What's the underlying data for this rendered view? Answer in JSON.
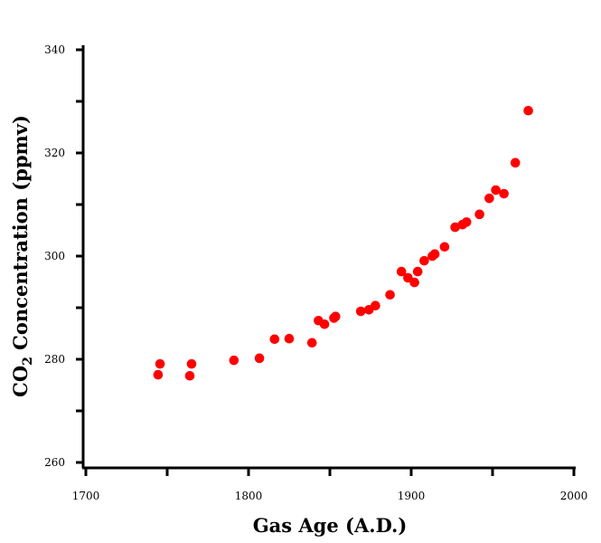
{
  "chart_data": {
    "type": "scatter",
    "title": "",
    "xlabel": "Gas Age (A.D.)",
    "ylabel_main": "CO",
    "ylabel_sub": "2",
    "ylabel_rest": " Concentration (ppmv)",
    "xlim": [
      1700,
      2000
    ],
    "ylim": [
      260,
      340
    ],
    "xticks": [
      "1700",
      "1800",
      "1900",
      "2000"
    ],
    "yticks": [
      "260",
      "280",
      "300",
      "320",
      "340"
    ],
    "grid": false,
    "marker_color": "#ff0000",
    "points": [
      [
        1744.4,
        277.0
      ],
      [
        1745.6,
        279.1
      ],
      [
        1763.9,
        276.8
      ],
      [
        1765.0,
        279.1
      ],
      [
        1791.0,
        279.8
      ],
      [
        1806.7,
        280.2
      ],
      [
        1816.0,
        283.9
      ],
      [
        1825.0,
        284.0
      ],
      [
        1839.0,
        283.2
      ],
      [
        1843.0,
        287.5
      ],
      [
        1846.7,
        286.8
      ],
      [
        1852.5,
        288.0
      ],
      [
        1853.5,
        288.3
      ],
      [
        1869.0,
        289.3
      ],
      [
        1874.0,
        289.6
      ],
      [
        1878.0,
        290.4
      ],
      [
        1887.0,
        292.5
      ],
      [
        1894.0,
        297.0
      ],
      [
        1898.0,
        295.8
      ],
      [
        1902.0,
        294.9
      ],
      [
        1904.0,
        297.0
      ],
      [
        1908.0,
        299.1
      ],
      [
        1913.0,
        300.0
      ],
      [
        1914.5,
        300.4
      ],
      [
        1920.5,
        301.8
      ],
      [
        1927.0,
        305.6
      ],
      [
        1931.5,
        306.1
      ],
      [
        1934.0,
        306.6
      ],
      [
        1942.0,
        308.1
      ],
      [
        1948.0,
        311.2
      ],
      [
        1952.0,
        312.8
      ],
      [
        1957.0,
        312.1
      ],
      [
        1964.0,
        318.1
      ],
      [
        1972.0,
        328.2
      ]
    ]
  }
}
